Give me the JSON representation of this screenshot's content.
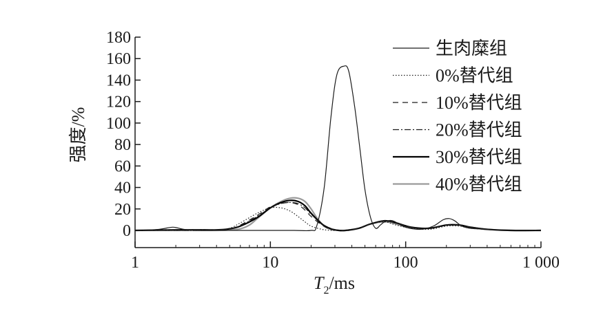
{
  "chart_data": {
    "type": "line",
    "xlabel": "T2/ms",
    "xlabel_main": "T",
    "xlabel_sub": "2",
    "xlabel_unit": "/ms",
    "ylabel": "强度/%",
    "x_scale": "log",
    "xlim": [
      1,
      1000
    ],
    "ylim": [
      -10,
      180
    ],
    "x_ticks": [
      1,
      10,
      100,
      1000
    ],
    "x_tick_labels": [
      "1",
      "10",
      "100",
      "1 000"
    ],
    "y_ticks": [
      0,
      20,
      40,
      60,
      80,
      100,
      120,
      140,
      160,
      180
    ],
    "y_tick_labels": [
      "0",
      "20",
      "40",
      "60",
      "80",
      "100",
      "120",
      "140",
      "160",
      "180"
    ],
    "grid": false,
    "legend_position": "top-right",
    "series": [
      {
        "name": "生肉糜组",
        "color": "#1a1a1a",
        "dash": "solid",
        "width": 1.2,
        "x": [
          1,
          1.5,
          1.9,
          2.3,
          3,
          5,
          10,
          15,
          20,
          22,
          25,
          28,
          31,
          35,
          38,
          42,
          46,
          50,
          55,
          60,
          65,
          70,
          80,
          100,
          130,
          160,
          190,
          210,
          230,
          260,
          300,
          400,
          600,
          1000
        ],
        "y": [
          0,
          1,
          3,
          1,
          0,
          0,
          0,
          0,
          0,
          4,
          40,
          105,
          145,
          153,
          148,
          115,
          75,
          38,
          12,
          2,
          5,
          8,
          9,
          3,
          1,
          4,
          10,
          11,
          9,
          4,
          2,
          1,
          0,
          0
        ]
      },
      {
        "name": "0%替代组",
        "color": "#1a1a1a",
        "dash": "1.5 2.5",
        "width": 1.2,
        "x": [
          1,
          2,
          3,
          4,
          5,
          6,
          8,
          10,
          12,
          14,
          16,
          18,
          20,
          24,
          28,
          32,
          36,
          45,
          55,
          70,
          85,
          110,
          150,
          200,
          250,
          300,
          400,
          600,
          1000
        ],
        "y": [
          0,
          0,
          0,
          0.5,
          2,
          7,
          16,
          21,
          21,
          18,
          13,
          8,
          4,
          1,
          0,
          0,
          0,
          2,
          6,
          8,
          5,
          2,
          1,
          4,
          4,
          2,
          1,
          0,
          0
        ]
      },
      {
        "name": "10%替代组",
        "color": "#1a1a1a",
        "dash": "8 6",
        "width": 1.2,
        "x": [
          1,
          2,
          3,
          4,
          5,
          6,
          8,
          10,
          12,
          14,
          16,
          18,
          20,
          24,
          28,
          32,
          36,
          45,
          55,
          70,
          85,
          110,
          150,
          200,
          250,
          300,
          400,
          600,
          1000
        ],
        "y": [
          0,
          0,
          0,
          0.5,
          1.5,
          5,
          14,
          22,
          25,
          26,
          24,
          19,
          13,
          5,
          1,
          0,
          0,
          2,
          6,
          9,
          7,
          3,
          2,
          5,
          5,
          3,
          1,
          0,
          0
        ]
      },
      {
        "name": "20%替代组",
        "color": "#1a1a1a",
        "dash": "9 3 2 3",
        "width": 1.2,
        "x": [
          1,
          2,
          3,
          4,
          5,
          6,
          8,
          10,
          12,
          14,
          16,
          18,
          20,
          24,
          28,
          32,
          36,
          45,
          55,
          70,
          85,
          110,
          150,
          200,
          250,
          300,
          400,
          600,
          1000
        ],
        "y": [
          0,
          0.5,
          0.5,
          0.5,
          1.5,
          4.5,
          13,
          21,
          25,
          26,
          25,
          21,
          15,
          6,
          1.5,
          0,
          0,
          2,
          6,
          9,
          7,
          3,
          2,
          5,
          5,
          3,
          1,
          0,
          0
        ]
      },
      {
        "name": "30%替代组",
        "color": "#000000",
        "dash": "solid",
        "width": 2.2,
        "x": [
          1,
          2,
          3,
          4,
          5,
          6,
          8,
          10,
          12,
          14,
          16,
          18,
          20,
          24,
          28,
          32,
          36,
          45,
          55,
          70,
          85,
          110,
          150,
          200,
          250,
          300,
          400,
          600,
          1000
        ],
        "y": [
          0,
          0.5,
          0.5,
          0.5,
          1.5,
          4,
          12,
          21,
          26,
          28,
          27,
          23,
          16,
          6,
          1.5,
          0,
          0,
          2,
          6,
          9,
          7,
          3,
          2,
          5,
          5,
          3,
          1,
          0,
          0
        ]
      },
      {
        "name": "40%替代组",
        "color": "#9a9a9a",
        "dash": "solid",
        "width": 2.2,
        "x": [
          1,
          2,
          3,
          4,
          5,
          6,
          7,
          8,
          10,
          12,
          14,
          16,
          18,
          20,
          22,
          25,
          28,
          32,
          36,
          45,
          55,
          70,
          85,
          110,
          150,
          200,
          250,
          300,
          400,
          600,
          1000
        ],
        "y": [
          0,
          0,
          0,
          0,
          0.5,
          1.5,
          5,
          11,
          21,
          27,
          30,
          30,
          27,
          20,
          12,
          4,
          1,
          0,
          0,
          2,
          6,
          8,
          6,
          2,
          2,
          5,
          5,
          3,
          1,
          0,
          0
        ]
      }
    ]
  }
}
